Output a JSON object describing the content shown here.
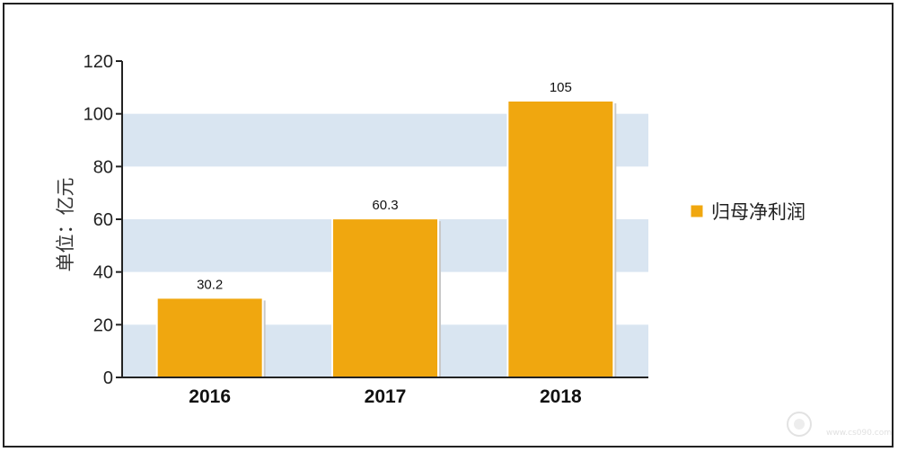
{
  "chart_data": {
    "type": "bar",
    "categories": [
      "2016",
      "2017",
      "2018"
    ],
    "series": [
      {
        "name": "归母净利润",
        "values": [
          30.2,
          60.3,
          105
        ]
      }
    ],
    "data_labels": [
      "30.2",
      "60.3",
      "105"
    ],
    "ylabel": "单位：亿元",
    "ylim": [
      0,
      120
    ],
    "yticks": [
      "0",
      "20",
      "40",
      "60",
      "80",
      "100",
      "120"
    ],
    "grid": "alternating horizontal bands",
    "legend_position": "right",
    "colors": {
      "bar": "#f0a70f",
      "band": "#d9e5f1",
      "axis": "#222222"
    }
  },
  "watermark": {
    "text": "www.cs090.com"
  }
}
